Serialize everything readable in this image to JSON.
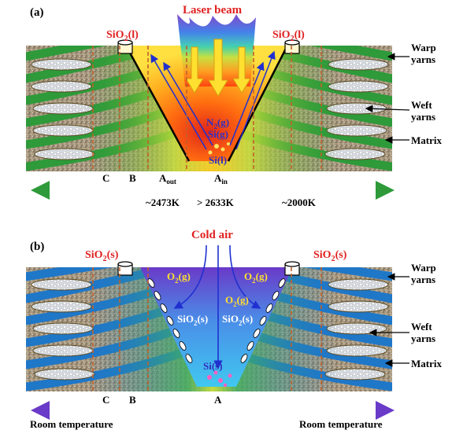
{
  "panel_a": {
    "tag": "(a)",
    "laser": "Laser beam",
    "sio2_left": "SiO",
    "sio2_right": "SiO",
    "sub2": "2",
    "phase_l": "(l)",
    "warp": "Warp",
    "warp2": "yarns",
    "weft": "Weft",
    "weft2": "yarns",
    "matrix": "Matrix",
    "n2": "N",
    "n2_tail": "(g)",
    "sig": "Si(g)",
    "sil": "Si(l)",
    "zone_c": "C",
    "zone_b": "B",
    "zone_aout": "A",
    "zone_aout_sub": "out",
    "zone_ain": "A",
    "zone_ain_sub": "in",
    "temp1": "~2473K",
    "temp2": "> 2633K",
    "temp3": "~2000K"
  },
  "panel_b": {
    "tag": "(b)",
    "cold": "Cold air",
    "sio2_left": "SiO",
    "sio2_right": "SiO",
    "sub2": "2",
    "phase_s": "(s)",
    "o2": "O",
    "o2_tail": "(g)",
    "sio2s": "SiO",
    "sio2s_tail": "(s)",
    "sis": "Si(s)",
    "warp": "Warp",
    "warp2": "yarns",
    "weft": "Weft",
    "weft2": "yarns",
    "matrix": "Matrix",
    "zone_c": "C",
    "zone_b": "B",
    "zone_a": "A",
    "room_left": "Room temperature",
    "room_right": "Room temperature"
  },
  "colors": {
    "warp_green": "#2e9a3a",
    "warp_blue": "#1f77c8",
    "label_red": "#e02020",
    "divider": "#c0602a"
  }
}
